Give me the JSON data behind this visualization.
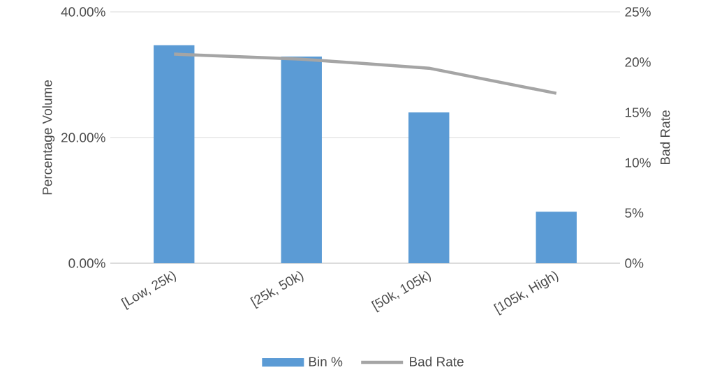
{
  "chart_data": {
    "type": "bar",
    "categories": [
      "[Low, 25k)",
      "[25k, 50k)",
      "[50k, 105k)",
      "[105k, High)"
    ],
    "series": [
      {
        "name": "Bin %",
        "color": "#5b9bd5",
        "values": [
          34.7,
          32.9,
          24.0,
          8.2
        ]
      },
      {
        "name": "Bad Rate",
        "type": "line",
        "axis": "y2",
        "color": "#a5a5a5",
        "values": [
          20.8,
          20.3,
          19.4,
          16.9
        ]
      }
    ],
    "ylabel": "Percentage Volume",
    "y2label": "Bad Rate",
    "ylim": [
      0,
      40
    ],
    "yticks": [
      {
        "value": 0,
        "label": "0.00%"
      },
      {
        "value": 20,
        "label": "20.00%"
      },
      {
        "value": 40,
        "label": "40.00%"
      }
    ],
    "y2lim": [
      0,
      25
    ],
    "y2ticks": [
      {
        "value": 0,
        "label": "0%"
      },
      {
        "value": 5,
        "label": "5%"
      },
      {
        "value": 10,
        "label": "10%"
      },
      {
        "value": 15,
        "label": "15%"
      },
      {
        "value": 20,
        "label": "20%"
      },
      {
        "value": 25,
        "label": "25%"
      }
    ],
    "grid": "y",
    "legend": "bottom"
  }
}
